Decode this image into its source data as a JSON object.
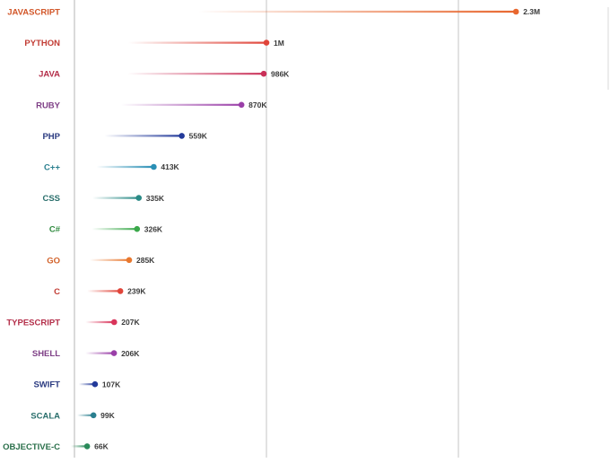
{
  "chart_data": {
    "type": "lollipop",
    "title": "",
    "xlabel": "",
    "ylabel": "",
    "grid": true,
    "legend": "none",
    "categories": [
      "JAVASCRIPT",
      "PYTHON",
      "JAVA",
      "RUBY",
      "PHP",
      "C++",
      "CSS",
      "C#",
      "GO",
      "C",
      "TYPESCRIPT",
      "SHELL",
      "SWIFT",
      "SCALA",
      "OBJECTIVE-C"
    ],
    "values": [
      2300000,
      1000000,
      986000,
      870000,
      559000,
      413000,
      335000,
      326000,
      285000,
      239000,
      207000,
      206000,
      107000,
      99000,
      66000
    ],
    "value_labels": [
      "2.3M",
      "1M",
      "986K",
      "870K",
      "559K",
      "413K",
      "335K",
      "326K",
      "285K",
      "239K",
      "207K",
      "206K",
      "107K",
      "99K",
      "66K"
    ],
    "colors": [
      "#e8672f",
      "#e0453a",
      "#c92f57",
      "#9a3fa8",
      "#233a9a",
      "#2a8fb5",
      "#2a8a86",
      "#3aa84a",
      "#e8782f",
      "#e0453a",
      "#d9345a",
      "#9a3fa8",
      "#233a9a",
      "#2a7f8f",
      "#2a8a5a"
    ],
    "label_colors": [
      "#d2572a",
      "#c23c34",
      "#b42f4a",
      "#7e3f86",
      "#2a3a80",
      "#2a7f8f",
      "#2a6f6c",
      "#2f8a3f",
      "#d2622a",
      "#c23c34",
      "#b42f4a",
      "#7e3f86",
      "#2a3a80",
      "#2a6f6c",
      "#2a6f4a"
    ],
    "gridline_values": [
      1000000,
      2000000
    ]
  }
}
